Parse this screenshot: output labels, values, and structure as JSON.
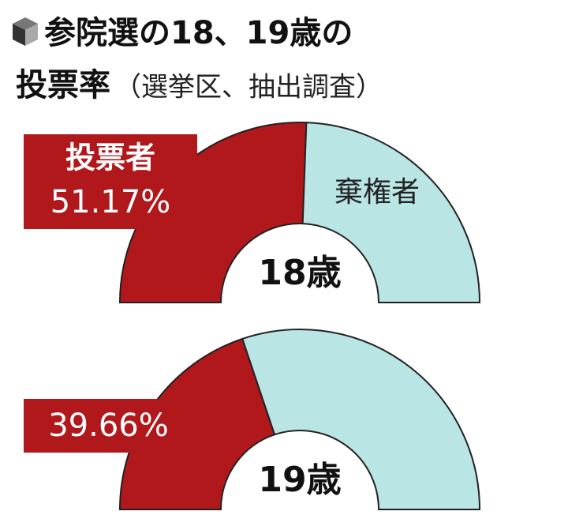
{
  "title": [
    "参院選の18、19歳の",
    "投票率"
  ],
  "subtitle": "（選挙区、抽出調査）",
  "chart_data": [
    {
      "type": "pie",
      "label": "18歳",
      "categories": [
        "投票者",
        "棄権者"
      ],
      "values": [
        51.17,
        48.83
      ],
      "value_labels": [
        "51.17%",
        null
      ],
      "colors": [
        "#b0181c",
        "#b9e5e4"
      ]
    },
    {
      "type": "pie",
      "label": "19歳",
      "categories": [
        null,
        null
      ],
      "values": [
        39.66,
        60.34
      ],
      "value_labels": [
        "39.66%",
        null
      ],
      "colors": [
        "#b0181c",
        "#b9e5e4"
      ]
    }
  ]
}
